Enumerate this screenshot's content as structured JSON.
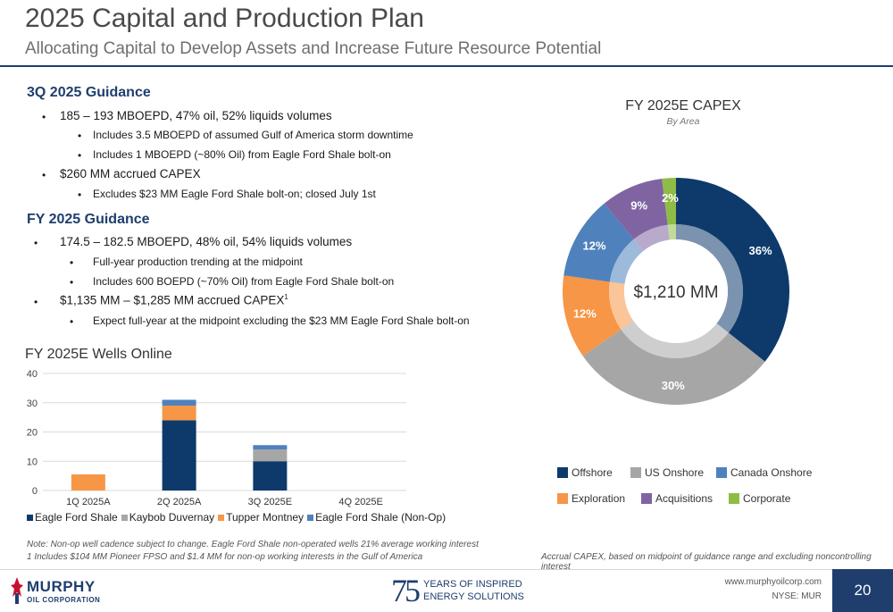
{
  "header": {
    "title": "2025 Capital and Production Plan",
    "subtitle": "Allocating Capital to Develop Assets and Increase Future Resource Potential"
  },
  "guidance_3q": {
    "heading": "3Q 2025 Guidance",
    "bullet1": "185 – 193 MBOEPD, 47% oil, 52% liquids volumes",
    "bullet1_sub1": "Includes 3.5 MBOEPD of assumed Gulf of America storm downtime",
    "bullet1_sub2": "Includes 1 MBOEPD (~80% Oil) from Eagle Ford Shale bolt-on",
    "bullet2": "$260 MM accrued CAPEX",
    "bullet2_sub1": "Excludes $23 MM Eagle Ford Shale bolt-on; closed July 1st"
  },
  "guidance_fy": {
    "heading": "FY 2025 Guidance",
    "bullet1": "174.5 – 182.5 MBOEPD, 48% oil, 54% liquids volumes",
    "bullet1_sub1": "Full-year production trending at the midpoint",
    "bullet1_sub2": "Includes 600 BOEPD (~70% Oil) from Eagle Ford Shale bolt-on",
    "bullet2": "$1,135 MM – $1,285 MM accrued CAPEX",
    "bullet2_sup": "1",
    "bullet2_sub1": "Expect full-year at the midpoint excluding the $23 MM Eagle Ford Shale bolt-on"
  },
  "notes": {
    "note1": "Note: Non-op well cadence subject to change. Eagle Ford Shale non-operated wells 21% average working interest",
    "note2": "1 Includes $104 MM Pioneer FPSO and $1.4 MM for non-op working interests in the Gulf of America",
    "pie_note": "Accrual CAPEX, based on midpoint of guidance range and excluding noncontrolling interest"
  },
  "footer": {
    "logo_name": "MURPHY",
    "logo_sub": "OIL CORPORATION",
    "anniv_num": "75",
    "anniv_line1": "YEARS OF INSPIRED",
    "anniv_line2": "ENERGY SOLUTIONS",
    "website": "www.murphyoilcorp.com",
    "ticker": "NYSE: MUR",
    "page": "20"
  },
  "chart_data": [
    {
      "type": "bar",
      "stacked": true,
      "title": "FY 2025E Wells Online",
      "categories": [
        "1Q 2025A",
        "2Q 2025A",
        "3Q 2025E",
        "4Q 2025E"
      ],
      "yticks": [
        "0",
        "10",
        "20",
        "30",
        "40"
      ],
      "ylim": [
        0,
        40
      ],
      "grid": true,
      "legend_position": "bottom",
      "series": [
        {
          "name": "Eagle Ford Shale",
          "color": "#0e3a6b",
          "values": [
            0,
            24,
            10,
            0
          ]
        },
        {
          "name": "Kaybob Duvernay",
          "color": "#a6a6a6",
          "values": [
            0,
            0,
            4,
            0
          ]
        },
        {
          "name": "Tupper Montney",
          "color": "#f79646",
          "values": [
            5.5,
            5,
            0,
            0
          ]
        },
        {
          "name": "Eagle Ford Shale (Non-Op)",
          "color": "#4f81bd",
          "values": [
            0,
            2,
            1.5,
            0
          ]
        }
      ]
    },
    {
      "type": "pie",
      "donut": true,
      "title": "FY 2025E CAPEX",
      "subtitle": "By Area",
      "center_label": "$1,210 MM",
      "legend_position": "bottom",
      "slices": [
        {
          "name": "Offshore",
          "value": 36,
          "label": "36%",
          "color": "#0e3a6b"
        },
        {
          "name": "US Onshore",
          "value": 30,
          "label": "30%",
          "color": "#a6a6a6"
        },
        {
          "name": "Exploration",
          "value": 12,
          "label": "12%",
          "color": "#f79646"
        },
        {
          "name": "Canada Onshore",
          "value": 12,
          "label": "12%",
          "color": "#4f81bd"
        },
        {
          "name": "Acquisitions",
          "value": 9,
          "label": "9%",
          "color": "#8064a2"
        },
        {
          "name": "Corporate",
          "value": 2,
          "label": "2%",
          "color": "#8fbc45"
        }
      ]
    }
  ]
}
